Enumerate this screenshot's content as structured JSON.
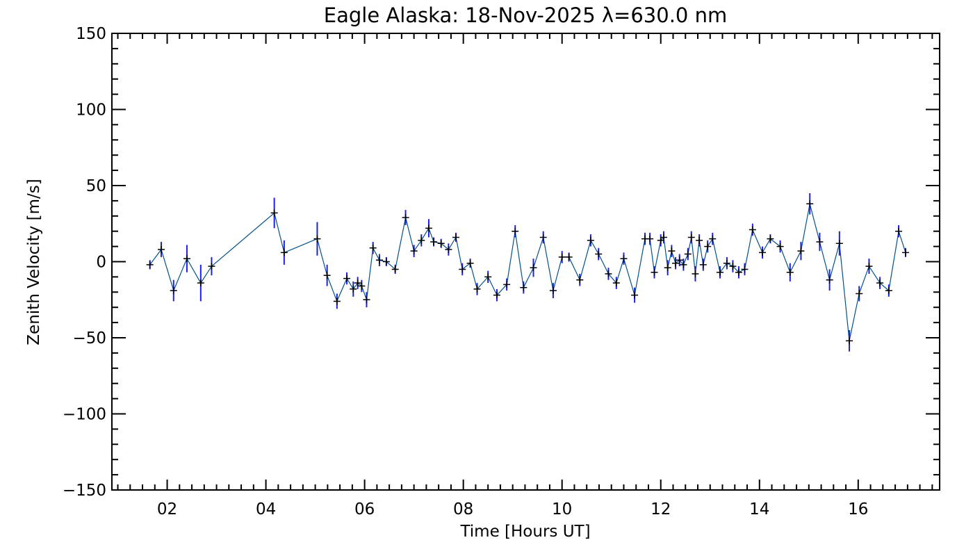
{
  "chart_data": {
    "type": "scatter",
    "title": "Eagle Alaska: 18-Nov-2025 λ=630.0 nm",
    "xlabel": "Time [Hours UT]",
    "ylabel": "Zenith Velocity [m/s]",
    "xlim": [
      0.88,
      17.65
    ],
    "ylim": [
      -150,
      150
    ],
    "x_tick_values": [
      2,
      4,
      6,
      8,
      10,
      12,
      14,
      16
    ],
    "x_tick_labels": [
      "02",
      "04",
      "06",
      "08",
      "10",
      "12",
      "14",
      "16"
    ],
    "y_tick_values": [
      -150,
      -100,
      -50,
      0,
      50,
      100,
      150
    ],
    "y_tick_labels": [
      "-150",
      "-100",
      "-50",
      "0",
      "50",
      "100",
      "150"
    ],
    "line_color": "#00508a",
    "errorbar_color": "#2020e0",
    "marker_color": "#000000",
    "series": [
      {
        "points": [
          {
            "x": 1.65,
            "y": -2,
            "err": 3
          },
          {
            "x": 1.88,
            "y": 8,
            "err": 5
          },
          {
            "x": 2.13,
            "y": -19,
            "err": 7
          },
          {
            "x": 2.4,
            "y": 2,
            "err": 9
          },
          {
            "x": 2.68,
            "y": -14,
            "err": 12
          },
          {
            "x": 2.9,
            "y": -3,
            "err": 6
          },
          {
            "x": 4.17,
            "y": 32,
            "err": 10
          },
          {
            "x": 4.37,
            "y": 6,
            "err": 8
          },
          {
            "x": 5.04,
            "y": 15,
            "err": 11
          },
          {
            "x": 5.24,
            "y": -9,
            "err": 7
          },
          {
            "x": 5.44,
            "y": -26,
            "err": 5
          },
          {
            "x": 5.64,
            "y": -11,
            "err": 4
          },
          {
            "x": 5.77,
            "y": -18,
            "err": 5
          },
          {
            "x": 5.86,
            "y": -14,
            "err": 4
          },
          {
            "x": 5.94,
            "y": -16,
            "err": 4
          },
          {
            "x": 6.04,
            "y": -25,
            "err": 5
          },
          {
            "x": 6.17,
            "y": 9,
            "err": 4
          },
          {
            "x": 6.3,
            "y": 1,
            "err": 4
          },
          {
            "x": 6.44,
            "y": 0,
            "err": 3
          },
          {
            "x": 6.62,
            "y": -5,
            "err": 3
          },
          {
            "x": 6.83,
            "y": 29,
            "err": 5
          },
          {
            "x": 7.0,
            "y": 7,
            "err": 4
          },
          {
            "x": 7.15,
            "y": 14,
            "err": 4
          },
          {
            "x": 7.3,
            "y": 22,
            "err": 6
          },
          {
            "x": 7.4,
            "y": 13,
            "err": 3
          },
          {
            "x": 7.55,
            "y": 12,
            "err": 3
          },
          {
            "x": 7.7,
            "y": 8,
            "err": 4
          },
          {
            "x": 7.85,
            "y": 16,
            "err": 3
          },
          {
            "x": 7.98,
            "y": -5,
            "err": 4
          },
          {
            "x": 8.14,
            "y": -1,
            "err": 3
          },
          {
            "x": 8.28,
            "y": -18,
            "err": 4
          },
          {
            "x": 8.5,
            "y": -10,
            "err": 4
          },
          {
            "x": 8.68,
            "y": -22,
            "err": 4
          },
          {
            "x": 8.88,
            "y": -15,
            "err": 4
          },
          {
            "x": 9.05,
            "y": 20,
            "err": 4
          },
          {
            "x": 9.22,
            "y": -17,
            "err": 4
          },
          {
            "x": 9.42,
            "y": -4,
            "err": 6
          },
          {
            "x": 9.62,
            "y": 16,
            "err": 4
          },
          {
            "x": 9.82,
            "y": -19,
            "err": 5
          },
          {
            "x": 10.0,
            "y": 3,
            "err": 4
          },
          {
            "x": 10.14,
            "y": 3,
            "err": 3
          },
          {
            "x": 10.36,
            "y": -12,
            "err": 4
          },
          {
            "x": 10.58,
            "y": 14,
            "err": 4
          },
          {
            "x": 10.74,
            "y": 5,
            "err": 4
          },
          {
            "x": 10.94,
            "y": -8,
            "err": 4
          },
          {
            "x": 11.1,
            "y": -14,
            "err": 4
          },
          {
            "x": 11.25,
            "y": 2,
            "err": 4
          },
          {
            "x": 11.47,
            "y": -22,
            "err": 5
          },
          {
            "x": 11.68,
            "y": 15,
            "err": 4
          },
          {
            "x": 11.78,
            "y": 15,
            "err": 4
          },
          {
            "x": 11.87,
            "y": -7,
            "err": 4
          },
          {
            "x": 12.0,
            "y": 14,
            "err": 4
          },
          {
            "x": 12.06,
            "y": 16,
            "err": 4
          },
          {
            "x": 12.14,
            "y": -4,
            "err": 5
          },
          {
            "x": 12.22,
            "y": 7,
            "err": 4
          },
          {
            "x": 12.3,
            "y": -1,
            "err": 4
          },
          {
            "x": 12.38,
            "y": 1,
            "err": 4
          },
          {
            "x": 12.46,
            "y": -2,
            "err": 4
          },
          {
            "x": 12.55,
            "y": 5,
            "err": 4
          },
          {
            "x": 12.62,
            "y": 16,
            "err": 4
          },
          {
            "x": 12.7,
            "y": -8,
            "err": 5
          },
          {
            "x": 12.78,
            "y": 14,
            "err": 4
          },
          {
            "x": 12.86,
            "y": -2,
            "err": 4
          },
          {
            "x": 12.95,
            "y": 10,
            "err": 4
          },
          {
            "x": 13.05,
            "y": 15,
            "err": 4
          },
          {
            "x": 13.2,
            "y": -7,
            "err": 4
          },
          {
            "x": 13.34,
            "y": -1,
            "err": 4
          },
          {
            "x": 13.46,
            "y": -3,
            "err": 4
          },
          {
            "x": 13.58,
            "y": -7,
            "err": 4
          },
          {
            "x": 13.7,
            "y": -5,
            "err": 4
          },
          {
            "x": 13.86,
            "y": 21,
            "err": 4
          },
          {
            "x": 14.06,
            "y": 6,
            "err": 4
          },
          {
            "x": 14.22,
            "y": 15,
            "err": 3
          },
          {
            "x": 14.42,
            "y": 10,
            "err": 4
          },
          {
            "x": 14.62,
            "y": -7,
            "err": 6
          },
          {
            "x": 14.84,
            "y": 7,
            "err": 6
          },
          {
            "x": 15.02,
            "y": 38,
            "err": 7
          },
          {
            "x": 15.22,
            "y": 13,
            "err": 6
          },
          {
            "x": 15.42,
            "y": -12,
            "err": 7
          },
          {
            "x": 15.62,
            "y": 12,
            "err": 8
          },
          {
            "x": 15.82,
            "y": -52,
            "err": 7
          },
          {
            "x": 16.02,
            "y": -21,
            "err": 5
          },
          {
            "x": 16.22,
            "y": -3,
            "err": 5
          },
          {
            "x": 16.44,
            "y": -14,
            "err": 4
          },
          {
            "x": 16.62,
            "y": -19,
            "err": 4
          },
          {
            "x": 16.82,
            "y": 20,
            "err": 4
          },
          {
            "x": 16.96,
            "y": 6,
            "err": 3
          }
        ]
      }
    ]
  }
}
